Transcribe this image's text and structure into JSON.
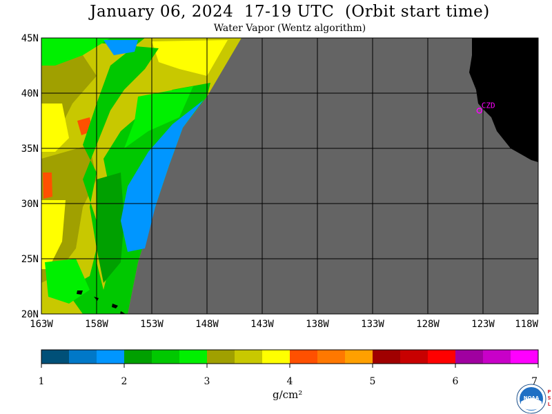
{
  "header": {
    "title": "January 06, 2024  17-19 UTC  (Orbit start time)",
    "subtitle": "Water Vapor (Wentz algorithm)"
  },
  "map": {
    "lat_labels": [
      "45N",
      "40N",
      "35N",
      "30N",
      "25N",
      "20N"
    ],
    "lon_labels": [
      "163W",
      "158W",
      "153W",
      "148W",
      "143W",
      "138W",
      "133W",
      "128W",
      "123W",
      "118W"
    ],
    "lat_range": [
      20,
      45
    ],
    "lon_range": [
      -163,
      -118
    ],
    "station": {
      "label": "CZD",
      "lat": 38.6,
      "lon": -123.2,
      "color": "#ff00ff"
    },
    "colors": {
      "no_data": "#646464",
      "land": "#000000",
      "grid": "#000000"
    }
  },
  "colorbar": {
    "tick_labels": [
      "1",
      "2",
      "3",
      "4",
      "5",
      "6",
      "7"
    ],
    "units": "g/cm²",
    "colors": [
      "#005078",
      "#0078c8",
      "#0096ff",
      "#00a000",
      "#00c800",
      "#00f000",
      "#a0a000",
      "#c8c800",
      "#ffff00",
      "#ff5000",
      "#ff7800",
      "#ffa000",
      "#a00000",
      "#c80000",
      "#ff0000",
      "#a000a0",
      "#c800c8",
      "#ff00ff"
    ]
  },
  "logo": {
    "noaa_text": "NOAA",
    "side_text": "PSL"
  }
}
